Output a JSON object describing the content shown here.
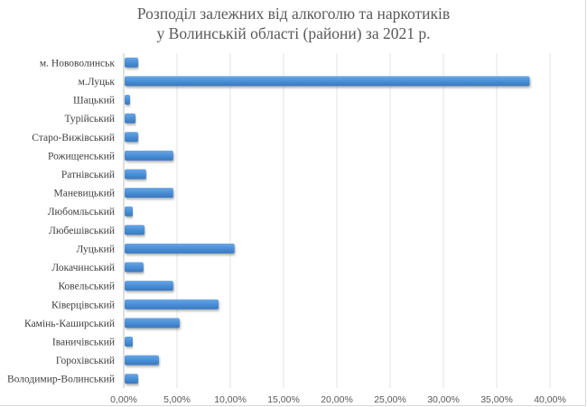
{
  "chart_data": {
    "type": "bar",
    "orientation": "horizontal",
    "title_line1": "Розподіл залежних від алкоголю та наркотиків",
    "title_line2": "у Волинській області (райони) за 2021 р.",
    "xlabel": "",
    "ylabel": "",
    "xlim": [
      0,
      40
    ],
    "xticks": [
      "0,00%",
      "5,00%",
      "10,00%",
      "15,00%",
      "20,00%",
      "25,00%",
      "30,00%",
      "35,00%",
      "40,00%"
    ],
    "grid": true,
    "bar_color": "#4a8fd6",
    "categories": [
      "м. Нововолинськ",
      "м.Луцьк",
      "Шацький",
      "Турійський",
      "Старо-Вижівський",
      "Рожищенський",
      "Ратнівський",
      "Маневицький",
      "Любомльський",
      "Любешівський",
      "Луцький",
      "Локачинський",
      "Ковельський",
      "Ківерцівський",
      "Камінь-Каширський",
      "Іваничівський",
      "Горохівський",
      "Володимир-Волинський"
    ],
    "values": [
      1.35,
      38.1,
      0.6,
      1.1,
      1.35,
      4.65,
      2.1,
      4.65,
      0.85,
      1.95,
      10.4,
      1.85,
      4.65,
      8.9,
      5.25,
      0.85,
      3.3,
      1.35
    ]
  }
}
